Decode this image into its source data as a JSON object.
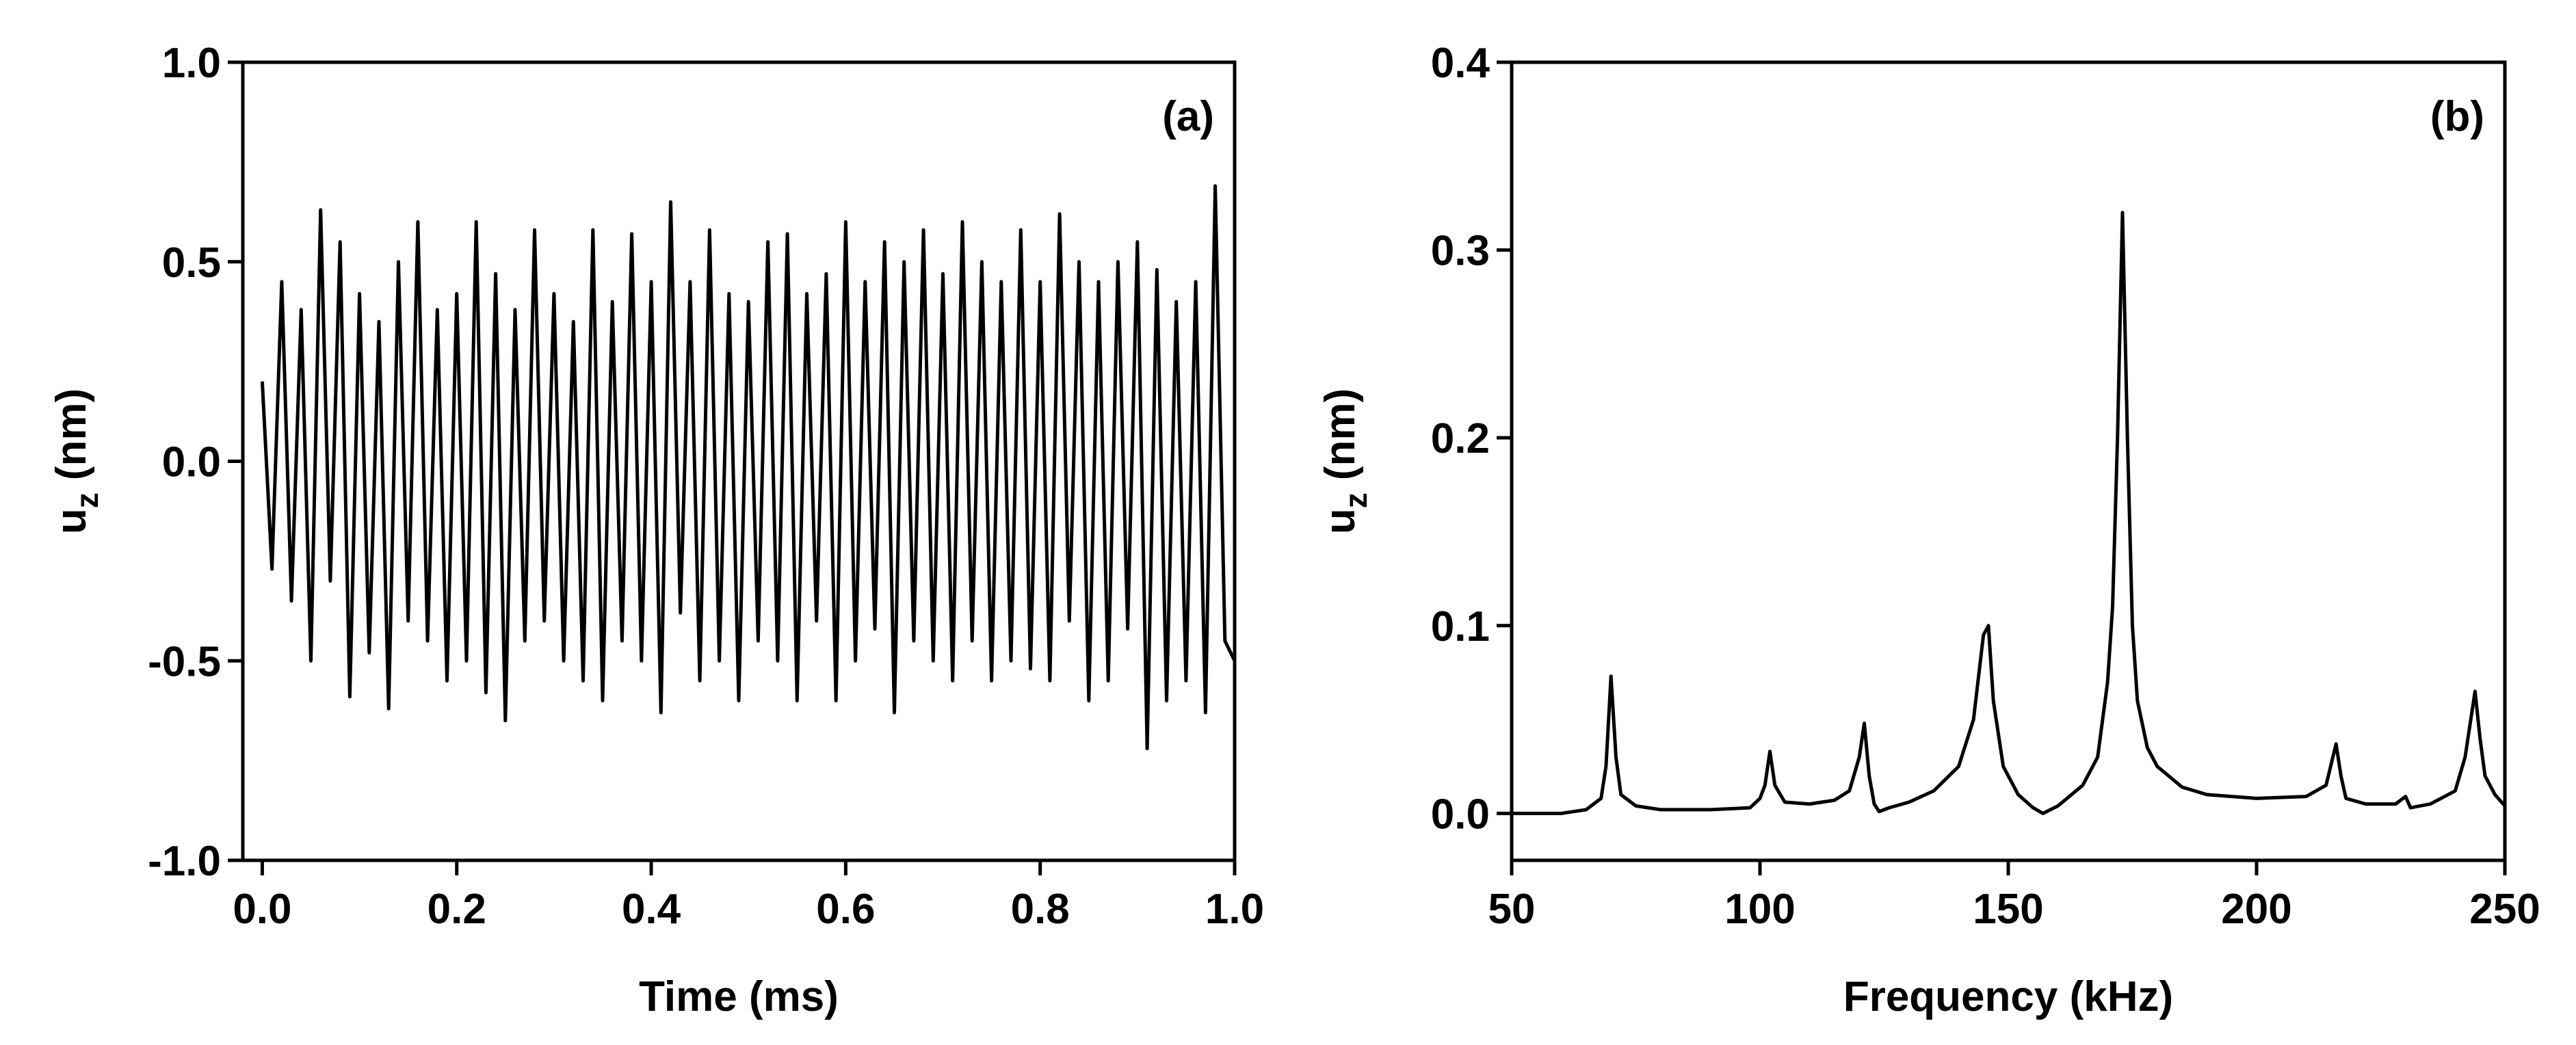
{
  "chart_data": [
    {
      "type": "line",
      "annotation": "(a)",
      "xlabel": "Time (ms)",
      "ylabel": {
        "main": "u",
        "sub": "z",
        "unit": "(nm)"
      },
      "color": "#000000",
      "xlim": [
        -0.02,
        1.0
      ],
      "ylim": [
        -1,
        1
      ],
      "xticks": [
        {
          "value": 0,
          "label": "0.0"
        },
        {
          "value": 0.2,
          "label": "0.2"
        },
        {
          "value": 0.4,
          "label": "0.4"
        },
        {
          "value": 0.6,
          "label": "0.6"
        },
        {
          "value": 0.8,
          "label": "0.8"
        },
        {
          "value": 1,
          "label": "1.0"
        }
      ],
      "yticks": [
        {
          "value": -1,
          "label": "-1.0"
        },
        {
          "value": -0.5,
          "label": "-0.5"
        },
        {
          "value": 0,
          "label": "0.0"
        },
        {
          "value": 0.5,
          "label": "0.5"
        },
        {
          "value": 1,
          "label": "1.0"
        }
      ],
      "x": [
        0,
        0.01,
        0.02,
        0.03,
        0.04,
        0.05,
        0.06,
        0.07,
        0.08,
        0.09,
        0.1,
        0.11,
        0.12,
        0.13,
        0.14,
        0.15,
        0.16,
        0.17,
        0.18,
        0.19,
        0.2,
        0.21,
        0.22,
        0.23,
        0.24,
        0.25,
        0.26,
        0.27,
        0.28,
        0.29,
        0.3,
        0.31,
        0.32,
        0.33,
        0.34,
        0.35,
        0.36,
        0.37,
        0.38,
        0.39,
        0.4,
        0.41,
        0.42,
        0.43,
        0.44,
        0.45,
        0.46,
        0.47,
        0.48,
        0.49,
        0.5,
        0.51,
        0.52,
        0.53,
        0.54,
        0.55,
        0.56,
        0.57,
        0.58,
        0.59,
        0.6,
        0.61,
        0.62,
        0.63,
        0.64,
        0.65,
        0.66,
        0.67,
        0.68,
        0.69,
        0.7,
        0.71,
        0.72,
        0.73,
        0.74,
        0.75,
        0.76,
        0.77,
        0.78,
        0.79,
        0.8,
        0.81,
        0.82,
        0.83,
        0.84,
        0.85,
        0.86,
        0.87,
        0.88,
        0.89,
        0.9,
        0.91,
        0.92,
        0.93,
        0.94,
        0.95,
        0.96,
        0.97,
        0.98,
        0.99,
        1.0
      ],
      "values": [
        0.2,
        -0.27,
        0.45,
        -0.35,
        0.38,
        -0.5,
        0.63,
        -0.3,
        0.55,
        -0.59,
        0.42,
        -0.48,
        0.35,
        -0.62,
        0.5,
        -0.4,
        0.6,
        -0.45,
        0.38,
        -0.55,
        0.42,
        -0.5,
        0.6,
        -0.58,
        0.47,
        -0.65,
        0.38,
        -0.45,
        0.58,
        -0.4,
        0.42,
        -0.5,
        0.35,
        -0.55,
        0.58,
        -0.6,
        0.4,
        -0.45,
        0.57,
        -0.5,
        0.45,
        -0.63,
        0.65,
        -0.38,
        0.45,
        -0.55,
        0.58,
        -0.5,
        0.42,
        -0.6,
        0.4,
        -0.45,
        0.55,
        -0.5,
        0.57,
        -0.6,
        0.42,
        -0.4,
        0.47,
        -0.6,
        0.6,
        -0.5,
        0.45,
        -0.42,
        0.55,
        -0.63,
        0.5,
        -0.45,
        0.58,
        -0.5,
        0.47,
        -0.55,
        0.6,
        -0.45,
        0.5,
        -0.55,
        0.45,
        -0.5,
        0.58,
        -0.52,
        0.45,
        -0.55,
        0.62,
        -0.4,
        0.5,
        -0.6,
        0.45,
        -0.55,
        0.5,
        -0.42,
        0.55,
        -0.72,
        0.48,
        -0.6,
        0.4,
        -0.55,
        0.45,
        -0.63,
        0.69,
        -0.45,
        -0.5
      ]
    },
    {
      "type": "line",
      "annotation": "(b)",
      "xlabel": "Frequency (kHz)",
      "ylabel": {
        "main": "u",
        "sub": "z",
        "unit": "(nm)"
      },
      "color": "#000000",
      "xlim": [
        50,
        250
      ],
      "ylim": [
        -0.025,
        0.4
      ],
      "xticks": [
        50,
        100,
        150,
        200,
        250
      ],
      "yticks": [
        {
          "value": 0,
          "label": "0.0"
        },
        {
          "value": 0.1,
          "label": "0.1"
        },
        {
          "value": 0.2,
          "label": "0.2"
        },
        {
          "value": 0.3,
          "label": "0.3"
        },
        {
          "value": 0.4,
          "label": "0.4"
        }
      ],
      "x": [
        50,
        55,
        60,
        65,
        68,
        69,
        70,
        71,
        72,
        75,
        80,
        90,
        98,
        100,
        101,
        102,
        103,
        105,
        110,
        115,
        118,
        120,
        121,
        122,
        123,
        124,
        126,
        130,
        135,
        140,
        143,
        145,
        146,
        147,
        149,
        152,
        155,
        157,
        160,
        165,
        168,
        170,
        171,
        172,
        173,
        174,
        175,
        176,
        178,
        180,
        185,
        190,
        200,
        210,
        214,
        216,
        217,
        218,
        222,
        228,
        230,
        231,
        235,
        240,
        242,
        244,
        245,
        246,
        248,
        250
      ],
      "values": [
        0.0,
        0.0,
        0.0,
        0.002,
        0.008,
        0.025,
        0.073,
        0.03,
        0.01,
        0.004,
        0.002,
        0.002,
        0.003,
        0.008,
        0.015,
        0.033,
        0.015,
        0.006,
        0.005,
        0.007,
        0.012,
        0.03,
        0.048,
        0.02,
        0.005,
        0.001,
        0.003,
        0.006,
        0.012,
        0.025,
        0.05,
        0.095,
        0.1,
        0.06,
        0.025,
        0.01,
        0.003,
        0.0,
        0.004,
        0.015,
        0.03,
        0.07,
        0.11,
        0.2,
        0.32,
        0.2,
        0.1,
        0.06,
        0.035,
        0.025,
        0.014,
        0.01,
        0.008,
        0.009,
        0.015,
        0.037,
        0.02,
        0.008,
        0.005,
        0.005,
        0.009,
        0.003,
        0.005,
        0.012,
        0.03,
        0.065,
        0.04,
        0.02,
        0.01,
        0.004
      ]
    }
  ]
}
